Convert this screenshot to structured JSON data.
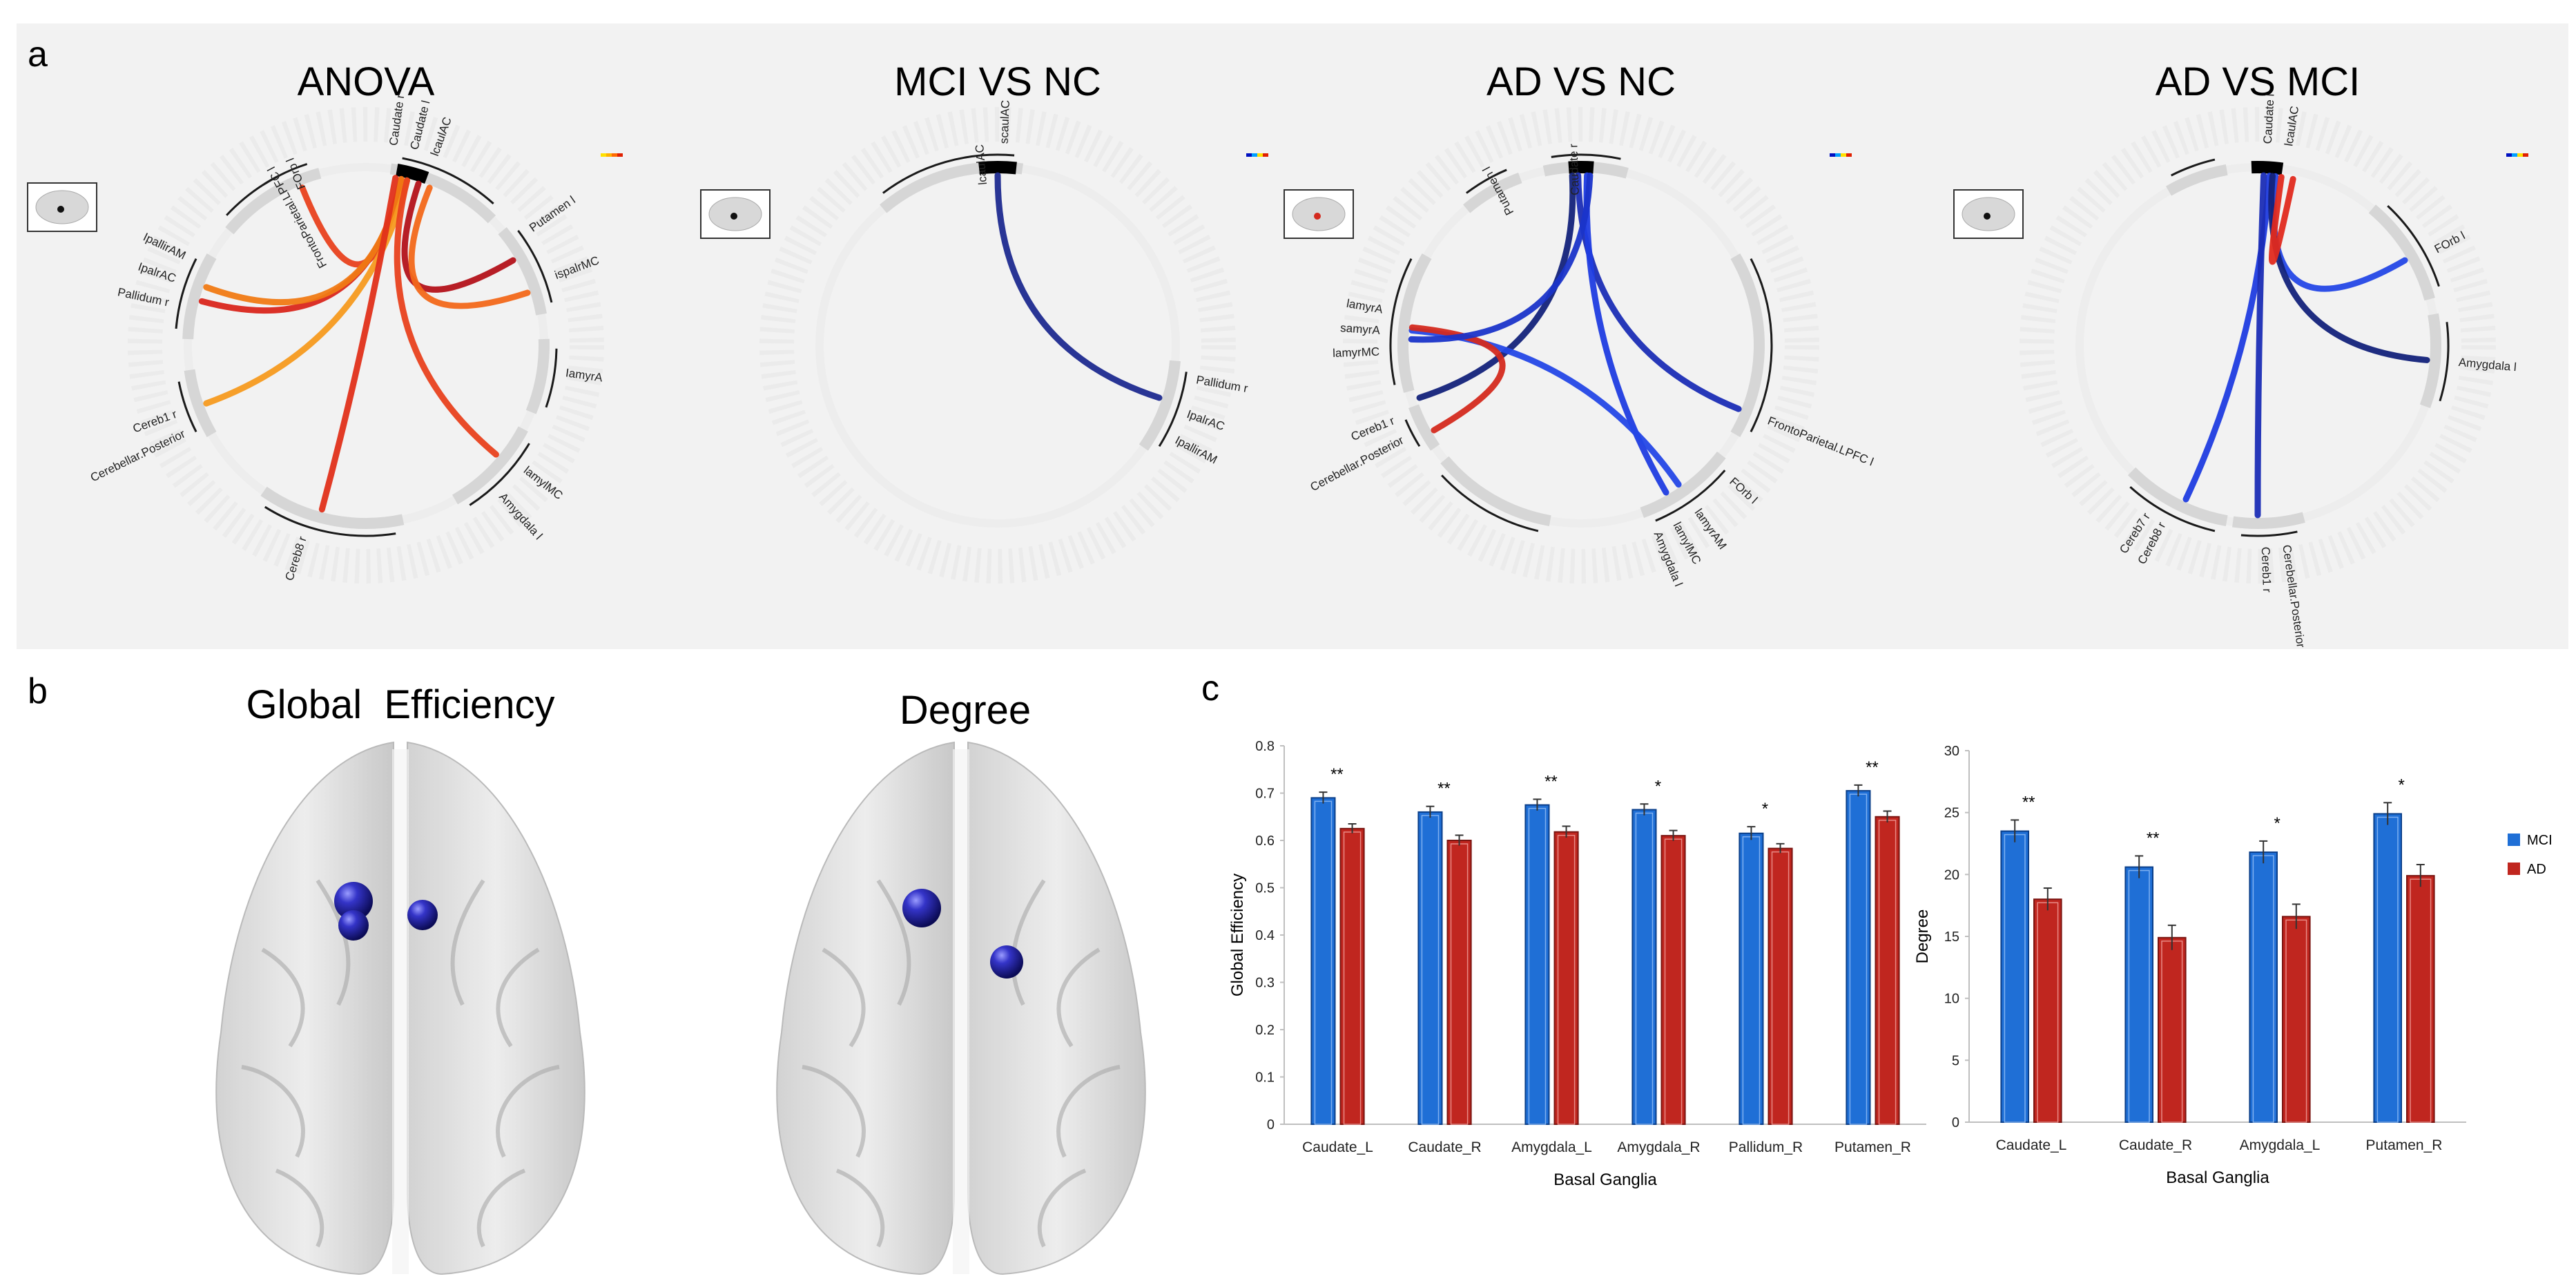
{
  "panel_labels": {
    "a": "a",
    "b": "b",
    "c": "c"
  },
  "colors": {
    "panel_bg": "#f2f2f2",
    "mci_blue": "#1f6fd6",
    "ad_red": "#c0261f",
    "ring_grey": "#dcdcdc",
    "bracket": "#1a1a1a",
    "sphere_blue": "#2a2ab0"
  },
  "circos": [
    {
      "title": "ANOVA",
      "node_labels": [
        "FOrb l",
        "FrontoParietal.LPFC l",
        "Caudate r",
        "Caudate l",
        "lcaulAC",
        "Putamen l",
        "ispalrMC",
        "IamyrA",
        "lamylMC",
        "Amygdala l",
        "Pallidum r",
        "IpalrAC",
        "IpallirAM",
        "Cereb1 r",
        "Cerebellar.Posterior",
        "Cereb8 r"
      ],
      "link_colors": [
        "#e8411e",
        "#d9261c",
        "#f07a14",
        "#f59a1f",
        "#b3121a",
        "#f2681a",
        "#e8411e",
        "#e0301a"
      ]
    },
    {
      "title": "MCI VS NC",
      "node_labels": [
        "lcaulAC",
        "scaulAC",
        "Pallidum r",
        "IpalrAC",
        "IpallirAM"
      ],
      "link_colors": [
        "#1d2a8f"
      ]
    },
    {
      "title": "AD VS NC",
      "node_labels": [
        "Putamen l",
        "Caudate r",
        "lamyrMC",
        "samyrA",
        "lamyrA",
        "Cerebellar.Posterior",
        "Cereb1 r",
        "FrontoParietal.LPFC l",
        "FOrb l",
        "lamyrAM",
        "lamylMC",
        "Amygdala l"
      ],
      "link_colors": [
        "#1b2db5",
        "#1f3ce0",
        "#13227a",
        "#2447e6",
        "#d42a1e",
        "#1a34c9"
      ]
    },
    {
      "title": "AD VS MCI",
      "node_labels": [
        "Caudate l",
        "lcaulAC",
        "FOrb l",
        "Amygdala l",
        "Cereb8 r",
        "Cereb7 r",
        "Cereb1 r",
        "Cerebellar.Posterior"
      ],
      "link_colors": [
        "#1f3ce0",
        "#1b2db5",
        "#2447e6",
        "#13227a",
        "#e02a1e"
      ]
    }
  ],
  "brains": {
    "left_title": "Global  Efficiency",
    "right_title": "Degree"
  },
  "chart_data": [
    {
      "type": "bar",
      "title": "",
      "xlabel": "Basal Ganglia",
      "ylabel": "Global Efficiency",
      "ylim": [
        0,
        0.8
      ],
      "yticks": [
        "0",
        "0.1",
        "0.2",
        "0.3",
        "0.4",
        "0.5",
        "0.6",
        "0.7",
        "0.8"
      ],
      "categories": [
        "Caudate_L",
        "Caudate_R",
        "Amygdala_L",
        "Amygdala_R",
        "Pallidum_R",
        "Putamen_R"
      ],
      "series": [
        {
          "name": "MCI",
          "values": [
            0.69,
            0.66,
            0.675,
            0.665,
            0.615,
            0.705
          ],
          "errors": [
            0.012,
            0.012,
            0.012,
            0.012,
            0.014,
            0.012
          ]
        },
        {
          "name": "AD",
          "values": [
            0.625,
            0.6,
            0.618,
            0.61,
            0.583,
            0.65
          ],
          "errors": [
            0.01,
            0.011,
            0.012,
            0.011,
            0.01,
            0.012
          ]
        }
      ],
      "significance": [
        "**",
        "**",
        "**",
        "*",
        "*",
        "**"
      ]
    },
    {
      "type": "bar",
      "title": "",
      "xlabel": "Basal Ganglia",
      "ylabel": "Degree",
      "ylim": [
        0,
        30
      ],
      "yticks": [
        "0",
        "5",
        "10",
        "15",
        "20",
        "25",
        "30"
      ],
      "categories": [
        "Caudate_L",
        "Caudate_R",
        "Amygdala_L",
        "Putamen_R"
      ],
      "series": [
        {
          "name": "MCI",
          "values": [
            23.5,
            20.6,
            21.8,
            24.9
          ],
          "errors": [
            0.9,
            0.9,
            0.9,
            0.9
          ]
        },
        {
          "name": "AD",
          "values": [
            18.0,
            14.9,
            16.6,
            19.9
          ],
          "errors": [
            0.9,
            1.0,
            1.0,
            0.9
          ]
        }
      ],
      "significance": [
        "**",
        "**",
        "*",
        "*"
      ],
      "legend": [
        "MCI",
        "AD"
      ]
    }
  ]
}
